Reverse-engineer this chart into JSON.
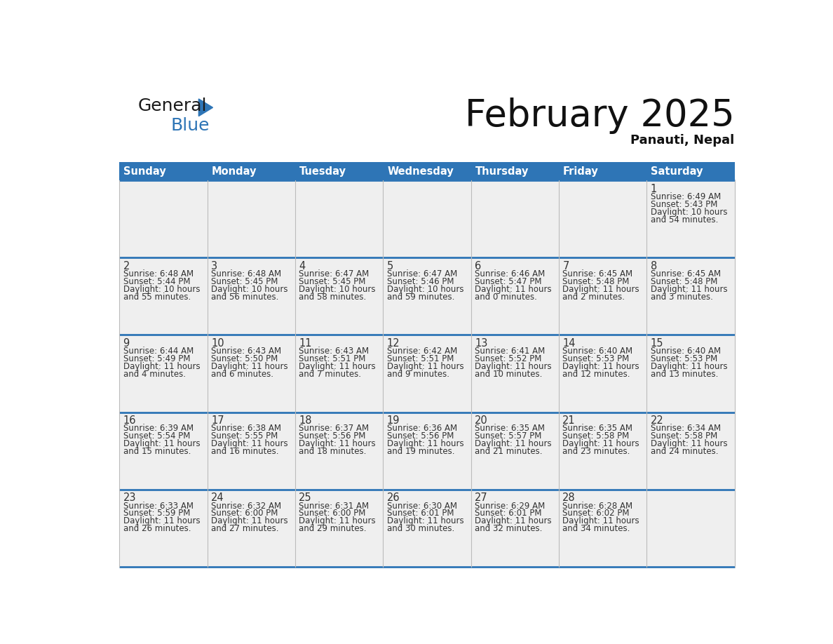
{
  "title": "February 2025",
  "subtitle": "Panauti, Nepal",
  "header_bg_color": "#2E75B6",
  "header_text_color": "#FFFFFF",
  "cell_bg_color": "#EFEFEF",
  "border_color": "#2E75B6",
  "grid_color": "#BBBBBB",
  "text_color": "#333333",
  "day_names": [
    "Sunday",
    "Monday",
    "Tuesday",
    "Wednesday",
    "Thursday",
    "Friday",
    "Saturday"
  ],
  "days": [
    {
      "day": 1,
      "col": 6,
      "row": 0,
      "sunrise": "6:49 AM",
      "sunset": "5:43 PM",
      "daylight_h": "10 hours",
      "daylight_m": "54 minutes."
    },
    {
      "day": 2,
      "col": 0,
      "row": 1,
      "sunrise": "6:48 AM",
      "sunset": "5:44 PM",
      "daylight_h": "10 hours",
      "daylight_m": "55 minutes."
    },
    {
      "day": 3,
      "col": 1,
      "row": 1,
      "sunrise": "6:48 AM",
      "sunset": "5:45 PM",
      "daylight_h": "10 hours",
      "daylight_m": "56 minutes."
    },
    {
      "day": 4,
      "col": 2,
      "row": 1,
      "sunrise": "6:47 AM",
      "sunset": "5:45 PM",
      "daylight_h": "10 hours",
      "daylight_m": "58 minutes."
    },
    {
      "day": 5,
      "col": 3,
      "row": 1,
      "sunrise": "6:47 AM",
      "sunset": "5:46 PM",
      "daylight_h": "10 hours",
      "daylight_m": "59 minutes."
    },
    {
      "day": 6,
      "col": 4,
      "row": 1,
      "sunrise": "6:46 AM",
      "sunset": "5:47 PM",
      "daylight_h": "11 hours",
      "daylight_m": "0 minutes."
    },
    {
      "day": 7,
      "col": 5,
      "row": 1,
      "sunrise": "6:45 AM",
      "sunset": "5:48 PM",
      "daylight_h": "11 hours",
      "daylight_m": "2 minutes."
    },
    {
      "day": 8,
      "col": 6,
      "row": 1,
      "sunrise": "6:45 AM",
      "sunset": "5:48 PM",
      "daylight_h": "11 hours",
      "daylight_m": "3 minutes."
    },
    {
      "day": 9,
      "col": 0,
      "row": 2,
      "sunrise": "6:44 AM",
      "sunset": "5:49 PM",
      "daylight_h": "11 hours",
      "daylight_m": "4 minutes."
    },
    {
      "day": 10,
      "col": 1,
      "row": 2,
      "sunrise": "6:43 AM",
      "sunset": "5:50 PM",
      "daylight_h": "11 hours",
      "daylight_m": "6 minutes."
    },
    {
      "day": 11,
      "col": 2,
      "row": 2,
      "sunrise": "6:43 AM",
      "sunset": "5:51 PM",
      "daylight_h": "11 hours",
      "daylight_m": "7 minutes."
    },
    {
      "day": 12,
      "col": 3,
      "row": 2,
      "sunrise": "6:42 AM",
      "sunset": "5:51 PM",
      "daylight_h": "11 hours",
      "daylight_m": "9 minutes."
    },
    {
      "day": 13,
      "col": 4,
      "row": 2,
      "sunrise": "6:41 AM",
      "sunset": "5:52 PM",
      "daylight_h": "11 hours",
      "daylight_m": "10 minutes."
    },
    {
      "day": 14,
      "col": 5,
      "row": 2,
      "sunrise": "6:40 AM",
      "sunset": "5:53 PM",
      "daylight_h": "11 hours",
      "daylight_m": "12 minutes."
    },
    {
      "day": 15,
      "col": 6,
      "row": 2,
      "sunrise": "6:40 AM",
      "sunset": "5:53 PM",
      "daylight_h": "11 hours",
      "daylight_m": "13 minutes."
    },
    {
      "day": 16,
      "col": 0,
      "row": 3,
      "sunrise": "6:39 AM",
      "sunset": "5:54 PM",
      "daylight_h": "11 hours",
      "daylight_m": "15 minutes."
    },
    {
      "day": 17,
      "col": 1,
      "row": 3,
      "sunrise": "6:38 AM",
      "sunset": "5:55 PM",
      "daylight_h": "11 hours",
      "daylight_m": "16 minutes."
    },
    {
      "day": 18,
      "col": 2,
      "row": 3,
      "sunrise": "6:37 AM",
      "sunset": "5:56 PM",
      "daylight_h": "11 hours",
      "daylight_m": "18 minutes."
    },
    {
      "day": 19,
      "col": 3,
      "row": 3,
      "sunrise": "6:36 AM",
      "sunset": "5:56 PM",
      "daylight_h": "11 hours",
      "daylight_m": "19 minutes."
    },
    {
      "day": 20,
      "col": 4,
      "row": 3,
      "sunrise": "6:35 AM",
      "sunset": "5:57 PM",
      "daylight_h": "11 hours",
      "daylight_m": "21 minutes."
    },
    {
      "day": 21,
      "col": 5,
      "row": 3,
      "sunrise": "6:35 AM",
      "sunset": "5:58 PM",
      "daylight_h": "11 hours",
      "daylight_m": "23 minutes."
    },
    {
      "day": 22,
      "col": 6,
      "row": 3,
      "sunrise": "6:34 AM",
      "sunset": "5:58 PM",
      "daylight_h": "11 hours",
      "daylight_m": "24 minutes."
    },
    {
      "day": 23,
      "col": 0,
      "row": 4,
      "sunrise": "6:33 AM",
      "sunset": "5:59 PM",
      "daylight_h": "11 hours",
      "daylight_m": "26 minutes."
    },
    {
      "day": 24,
      "col": 1,
      "row": 4,
      "sunrise": "6:32 AM",
      "sunset": "6:00 PM",
      "daylight_h": "11 hours",
      "daylight_m": "27 minutes."
    },
    {
      "day": 25,
      "col": 2,
      "row": 4,
      "sunrise": "6:31 AM",
      "sunset": "6:00 PM",
      "daylight_h": "11 hours",
      "daylight_m": "29 minutes."
    },
    {
      "day": 26,
      "col": 3,
      "row": 4,
      "sunrise": "6:30 AM",
      "sunset": "6:01 PM",
      "daylight_h": "11 hours",
      "daylight_m": "30 minutes."
    },
    {
      "day": 27,
      "col": 4,
      "row": 4,
      "sunrise": "6:29 AM",
      "sunset": "6:01 PM",
      "daylight_h": "11 hours",
      "daylight_m": "32 minutes."
    },
    {
      "day": 28,
      "col": 5,
      "row": 4,
      "sunrise": "6:28 AM",
      "sunset": "6:02 PM",
      "daylight_h": "11 hours",
      "daylight_m": "34 minutes."
    }
  ],
  "num_rows": 5,
  "num_cols": 7,
  "logo_color_general": "#1a1a1a",
  "logo_color_blue": "#2E75B6",
  "logo_triangle_color": "#2E75B6"
}
